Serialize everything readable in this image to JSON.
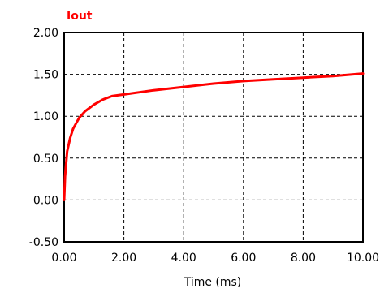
{
  "chart_data": {
    "type": "line",
    "xlabel": "Time (ms)",
    "ylabel": "",
    "xlim": [
      0,
      10
    ],
    "ylim": [
      -0.5,
      2.0
    ],
    "x_ticks": [
      0,
      2,
      4,
      6,
      8,
      10
    ],
    "x_tick_labels": [
      "0.00",
      "2.00",
      "4.00",
      "6.00",
      "8.00",
      "10.00"
    ],
    "y_ticks": [
      -0.5,
      0,
      0.5,
      1.0,
      1.5,
      2.0
    ],
    "y_tick_labels": [
      "-0.50",
      "0.00",
      "0.50",
      "1.00",
      "1.50",
      "2.00"
    ],
    "grid": true,
    "grid_style": "dashed",
    "series": [
      {
        "name": "Iout",
        "color": "#ff0000",
        "x": [
          0,
          0.03,
          0.1,
          0.2,
          0.3,
          0.5,
          0.7,
          1.0,
          1.3,
          1.6,
          1.8,
          2.0,
          3.0,
          4.0,
          5.0,
          6.0,
          7.0,
          8.0,
          9.0,
          10.0
        ],
        "y": [
          0.0,
          0.28,
          0.58,
          0.74,
          0.85,
          0.98,
          1.06,
          1.14,
          1.2,
          1.24,
          1.25,
          1.26,
          1.31,
          1.35,
          1.39,
          1.42,
          1.44,
          1.46,
          1.48,
          1.51
        ]
      }
    ]
  }
}
